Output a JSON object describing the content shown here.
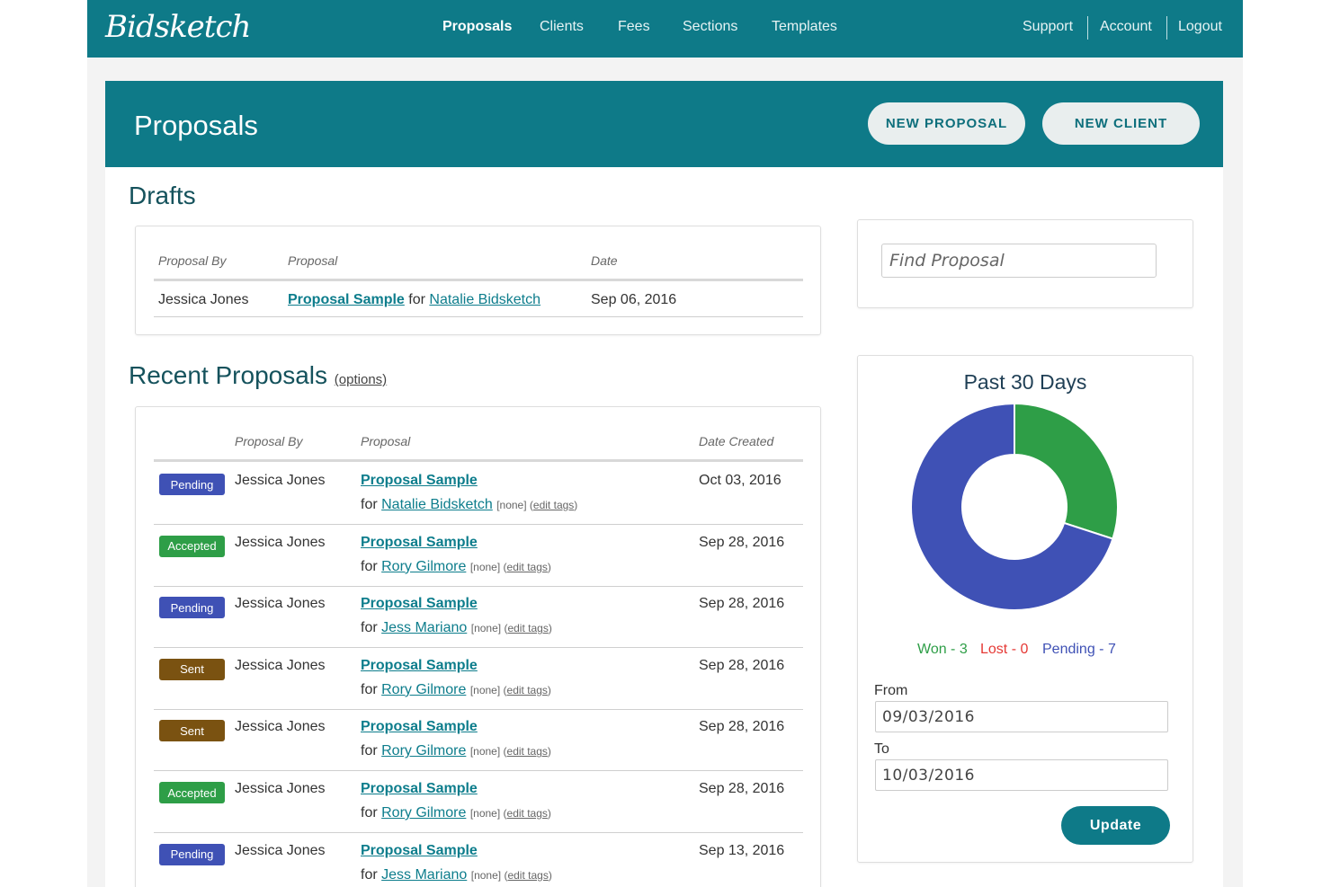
{
  "app": {
    "logo": "Bidsketch"
  },
  "nav": {
    "items": [
      "Proposals",
      "Clients",
      "Fees",
      "Sections",
      "Templates"
    ],
    "right": [
      "Support",
      "Account",
      "Logout"
    ]
  },
  "banner": {
    "title": "Proposals",
    "new_proposal": "NEW PROPOSAL",
    "new_client": "NEW CLIENT"
  },
  "drafts": {
    "heading": "Drafts",
    "headers": {
      "by": "Proposal By",
      "proposal": "Proposal",
      "date": "Date"
    },
    "rows": [
      {
        "by": "Jessica Jones",
        "proposal": "Proposal Sample",
        "for_word": "for",
        "client": "Natalie Bidsketch",
        "date": "Sep 06, 2016"
      }
    ]
  },
  "recent": {
    "heading": "Recent Proposals",
    "options": "(options)",
    "headers": {
      "by": "Proposal By",
      "proposal": "Proposal",
      "date": "Date Created"
    },
    "rows": [
      {
        "status": "Pending",
        "by": "Jessica Jones",
        "proposal": "Proposal Sample",
        "for_word": "for",
        "client": "Natalie Bidsketch",
        "tags": "[none]",
        "edit": "edit tags",
        "date": "Oct 03, 2016"
      },
      {
        "status": "Accepted",
        "by": "Jessica Jones",
        "proposal": "Proposal Sample",
        "for_word": "for",
        "client": "Rory Gilmore",
        "tags": "[none]",
        "edit": "edit tags",
        "date": "Sep 28, 2016"
      },
      {
        "status": "Pending",
        "by": "Jessica Jones",
        "proposal": "Proposal Sample",
        "for_word": "for",
        "client": "Jess Mariano",
        "tags": "[none]",
        "edit": "edit tags",
        "date": "Sep 28, 2016"
      },
      {
        "status": "Sent",
        "by": "Jessica Jones",
        "proposal": "Proposal Sample",
        "for_word": "for",
        "client": "Rory Gilmore",
        "tags": "[none]",
        "edit": "edit tags",
        "date": "Sep 28, 2016"
      },
      {
        "status": "Sent",
        "by": "Jessica Jones",
        "proposal": "Proposal Sample",
        "for_word": "for",
        "client": "Rory Gilmore",
        "tags": "[none]",
        "edit": "edit tags",
        "date": "Sep 28, 2016"
      },
      {
        "status": "Accepted",
        "by": "Jessica Jones",
        "proposal": "Proposal Sample",
        "for_word": "for",
        "client": "Rory Gilmore",
        "tags": "[none]",
        "edit": "edit tags",
        "date": "Sep 28, 2016"
      },
      {
        "status": "Pending",
        "by": "Jessica Jones",
        "proposal": "Proposal Sample",
        "for_word": "for",
        "client": "Jess Mariano",
        "tags": "[none]",
        "edit": "edit tags",
        "date": "Sep 13, 2016"
      }
    ]
  },
  "status_colors": {
    "Pending": "#3f51b5",
    "Accepted": "#2e9e47",
    "Sent": "#7a5211"
  },
  "search": {
    "placeholder": "Find Proposal"
  },
  "stats": {
    "title": "Past 30 Days",
    "legend": [
      {
        "text": "Won - 3",
        "color": "#2e9e47"
      },
      {
        "text": "Lost - 0",
        "color": "#e53935"
      },
      {
        "text": "Pending - 7",
        "color": "#3f51b5"
      }
    ],
    "from_label": "From",
    "from_value": "09/03/2016",
    "to_label": "To",
    "to_value": "10/03/2016",
    "update": "Update"
  },
  "chart_data": {
    "type": "pie",
    "title": "Past 30 Days",
    "categories": [
      "Won",
      "Lost",
      "Pending"
    ],
    "values": [
      3,
      0,
      7
    ],
    "colors": [
      "#2e9e47",
      "#e53935",
      "#3f51b5"
    ],
    "donut": true
  }
}
